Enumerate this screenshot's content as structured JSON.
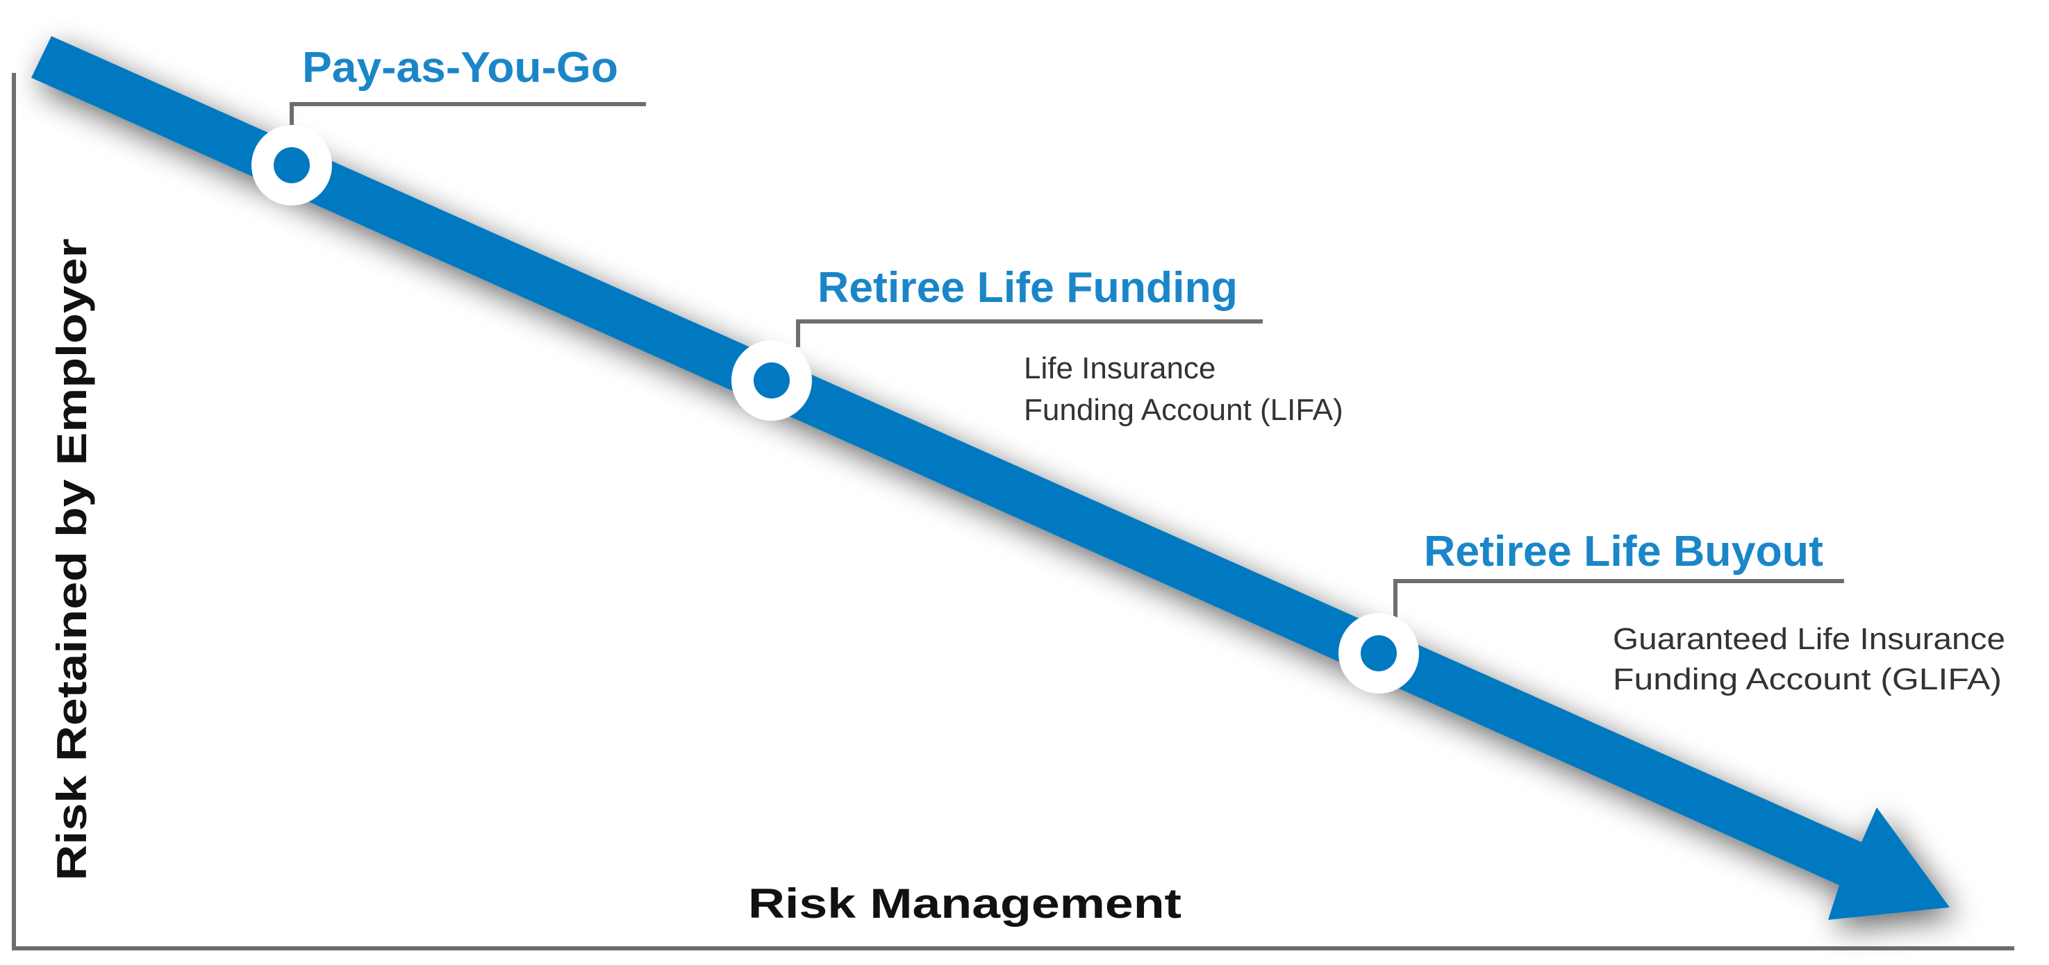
{
  "colors": {
    "arrow": "#0079c1",
    "label": "#1a86c8",
    "axis": "#6e6e6e",
    "text": "#333333"
  },
  "axes": {
    "y_label": "Risk Retained by Employer",
    "x_label": "Risk Management"
  },
  "stages": [
    {
      "title": "Pay-as-You-Go",
      "desc": []
    },
    {
      "title": "Retiree Life Funding",
      "desc": [
        "Life Insurance",
        "Funding Account (LIFA)"
      ]
    },
    {
      "title": "Retiree Life Buyout",
      "desc": [
        "Guaranteed Life Insurance",
        "Funding Account (GLIFA)"
      ]
    }
  ]
}
